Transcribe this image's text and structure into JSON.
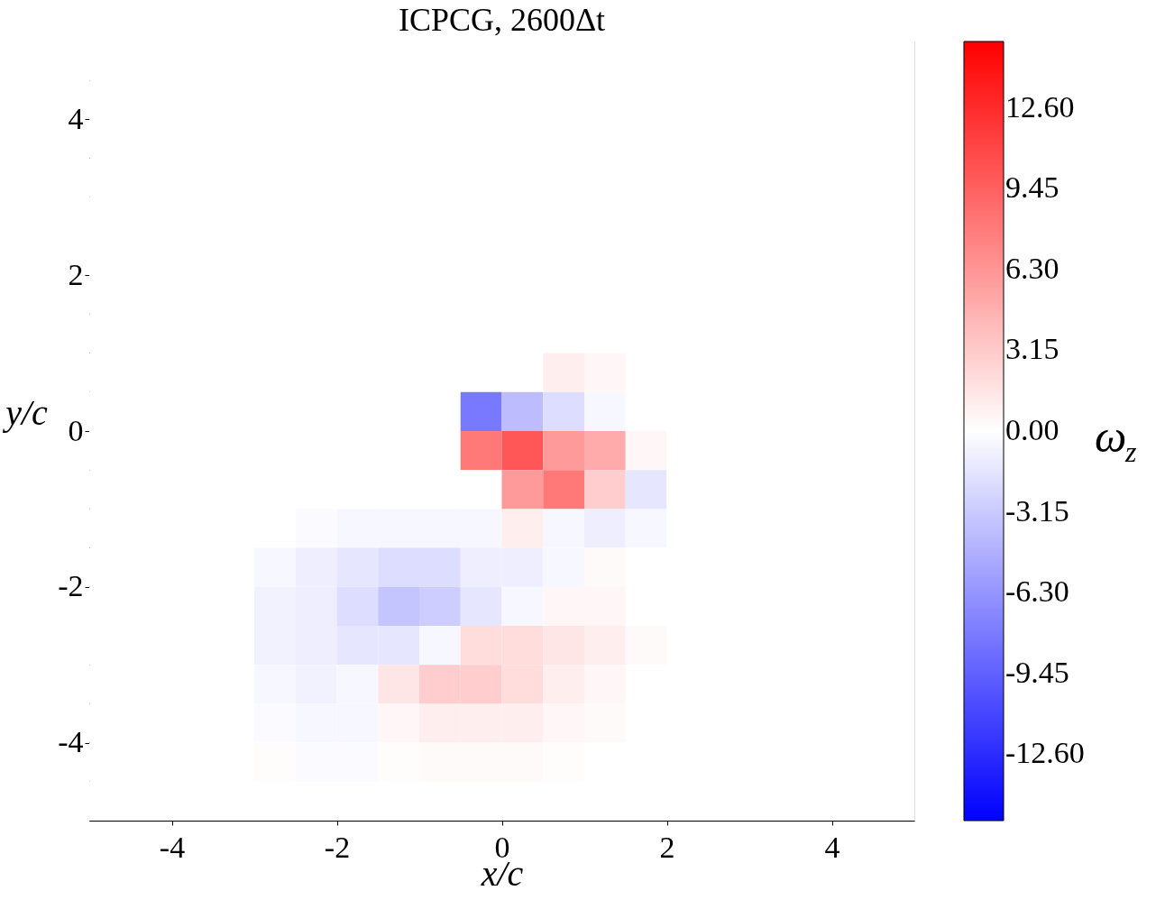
{
  "chart_data": {
    "type": "heatmap",
    "title": "ICPCG, 2600Δt",
    "xlabel": "x/c",
    "ylabel": "y/c",
    "clabel": "ω$_{z}$",
    "x": [
      -4.75,
      -4.25,
      -3.75,
      -3.25,
      -2.75,
      -2.25,
      -1.75,
      -1.25,
      -0.75,
      -0.25,
      0.25,
      0.75,
      1.25,
      1.75,
      2.25,
      2.75,
      3.25,
      3.75,
      4.25,
      4.75
    ],
    "y": [
      4.75,
      4.25,
      3.75,
      3.25,
      2.75,
      2.25,
      1.75,
      1.25,
      0.75,
      0.25,
      -0.25,
      -0.75,
      -1.25,
      -1.75,
      -2.25,
      -2.75,
      -3.25,
      -3.75,
      -4.25,
      -4.75
    ],
    "cells": [
      [
        0,
        0,
        0,
        0,
        0,
        0,
        0,
        0,
        0,
        0,
        0,
        0,
        0,
        0,
        0,
        0,
        0,
        0,
        0,
        0
      ],
      [
        0,
        0,
        0,
        0,
        0,
        0,
        0,
        0,
        0,
        0,
        0,
        0,
        0,
        0,
        0,
        0,
        0,
        0,
        0,
        0
      ],
      [
        0,
        0,
        0,
        0,
        0,
        0,
        0,
        0,
        0,
        0,
        0,
        0,
        0,
        0,
        0,
        0,
        0,
        0,
        0,
        0
      ],
      [
        0,
        0,
        0,
        0,
        0,
        0,
        0,
        0,
        0,
        0,
        0,
        0,
        0,
        0,
        0,
        0,
        0,
        0,
        0,
        0
      ],
      [
        0,
        0,
        0,
        0,
        0,
        0,
        0,
        0,
        0,
        0,
        0,
        0,
        0,
        0,
        0,
        0,
        0,
        0,
        0,
        0
      ],
      [
        0,
        0,
        0,
        0,
        0,
        0,
        0,
        0,
        0,
        0,
        0,
        0,
        0,
        0,
        0,
        0,
        0,
        0,
        0,
        0
      ],
      [
        0,
        0,
        0,
        0,
        0,
        0,
        0,
        0,
        0,
        0,
        0,
        0,
        0,
        0,
        0,
        0,
        0,
        0,
        0,
        0
      ],
      [
        0,
        0,
        0,
        0,
        0,
        0,
        0,
        0,
        0,
        0,
        0,
        0,
        0,
        0,
        0,
        0,
        0,
        0,
        0,
        0
      ],
      [
        0,
        0,
        0,
        0,
        0,
        0,
        0,
        0,
        0,
        0,
        0,
        1,
        0.5,
        0,
        0,
        0,
        0,
        0,
        0,
        0
      ],
      [
        0,
        0,
        0,
        0,
        0,
        0,
        0,
        0,
        0,
        -8,
        -4,
        -2,
        -0.5,
        0,
        0,
        0,
        0,
        0,
        0,
        0
      ],
      [
        0,
        0,
        0,
        0,
        0,
        0,
        0,
        0,
        0,
        8,
        10,
        6,
        5,
        0.5,
        0,
        0,
        0,
        0,
        0,
        0
      ],
      [
        0,
        0,
        0,
        0,
        0,
        0,
        0,
        0,
        0,
        0,
        6,
        8,
        3,
        -1.5,
        0,
        0,
        0,
        0,
        0,
        0
      ],
      [
        0,
        0,
        0,
        0,
        0,
        -0.3,
        -0.5,
        -0.5,
        -0.5,
        -0.5,
        1,
        -0.5,
        -1,
        -0.5,
        0,
        0,
        0,
        0,
        0,
        0
      ],
      [
        0,
        0,
        0,
        0,
        -0.5,
        -1,
        -1.5,
        -2,
        -2,
        -1,
        -1,
        -0.5,
        0.3,
        0,
        0,
        0,
        0,
        0,
        0,
        0
      ],
      [
        0,
        0,
        0,
        0,
        -0.8,
        -1,
        -2,
        -3.5,
        -3,
        -1.5,
        -0.5,
        0.5,
        0.5,
        0,
        0,
        0,
        0,
        0,
        0,
        0
      ],
      [
        0,
        0,
        0,
        0,
        -0.8,
        -1,
        -1.5,
        -1.5,
        -0.5,
        2,
        2,
        1.5,
        1,
        0.3,
        0,
        0,
        0,
        0,
        0,
        0
      ],
      [
        0,
        0,
        0,
        0,
        -0.5,
        -0.8,
        -0.5,
        1.5,
        3,
        3,
        2,
        1,
        0.5,
        0,
        0,
        0,
        0,
        0,
        0,
        0
      ],
      [
        0,
        0,
        0,
        0,
        -0.3,
        -0.5,
        -0.5,
        0.5,
        1,
        1,
        1,
        0.5,
        0.3,
        0,
        0,
        0,
        0,
        0,
        0,
        0
      ],
      [
        0,
        0,
        0,
        0,
        0.2,
        -0.3,
        -0.3,
        0.2,
        0.3,
        0.3,
        0.3,
        0.2,
        0,
        0,
        0,
        0,
        0,
        0,
        0,
        0
      ],
      [
        0,
        0,
        0,
        0,
        0,
        0,
        0,
        0,
        0,
        0,
        0,
        0,
        0,
        0,
        0,
        0,
        0,
        0,
        0,
        0
      ]
    ],
    "xlim": [
      -5,
      5
    ],
    "ylim": [
      -5,
      5
    ],
    "xticks": [
      -4,
      -2,
      0,
      2,
      4
    ],
    "yticks": [
      -4,
      -2,
      0,
      2,
      4
    ],
    "clim": [
      -15.2,
      15.2
    ],
    "cticks": [
      {
        "value": -12.6,
        "label": "-12.60"
      },
      {
        "value": -9.45,
        "label": "-9.45"
      },
      {
        "value": -6.3,
        "label": "-6.30"
      },
      {
        "value": -3.15,
        "label": "-3.15"
      },
      {
        "value": 0,
        "label": "0.00"
      },
      {
        "value": 3.15,
        "label": "3.15"
      },
      {
        "value": 6.3,
        "label": "6.30"
      },
      {
        "value": 9.45,
        "label": "9.45"
      },
      {
        "value": 12.6,
        "label": "12.60"
      }
    ],
    "grid": false
  }
}
